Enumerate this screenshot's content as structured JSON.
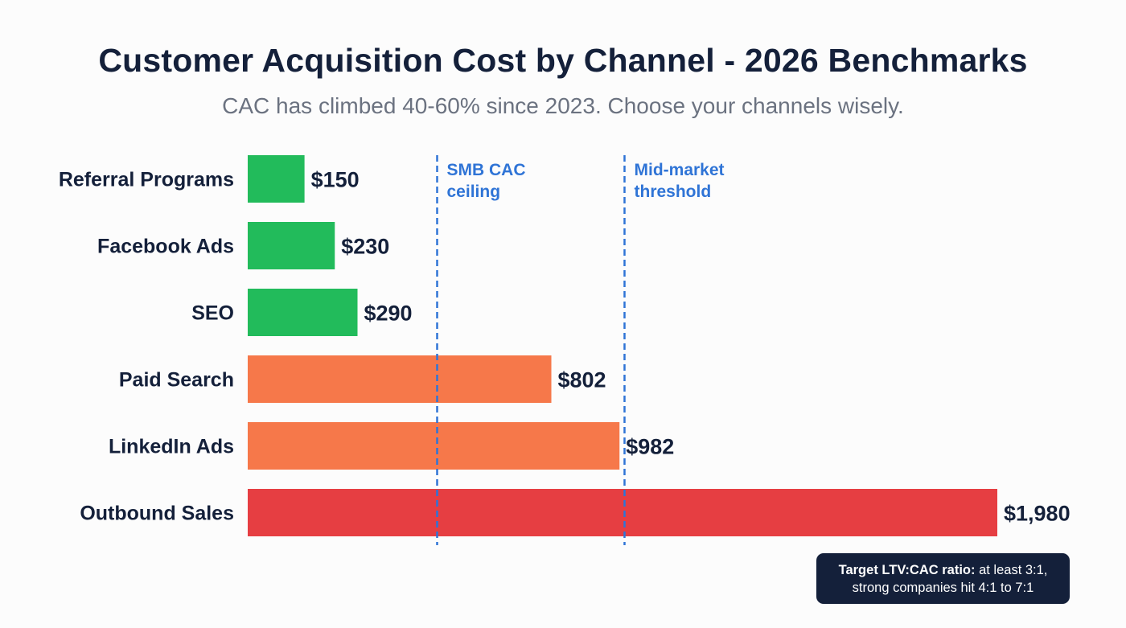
{
  "title": "Customer Acquisition Cost by Channel - 2026 Benchmarks",
  "subtitle": "CAC has climbed 40-60% since 2023. Choose your channels wisely.",
  "note": {
    "bold": "Target LTV:CAC ratio:",
    "line1_rest": " at least 3:1,",
    "line2": "strong companies hit 4:1 to 7:1"
  },
  "colors": {
    "low": "#22bb5b",
    "mid": "#f6784a",
    "high": "#e63e42",
    "reference": "#2f74d6",
    "text": "#14203a"
  },
  "chart_data": {
    "type": "bar",
    "orientation": "horizontal",
    "categories": [
      "Referral Programs",
      "Facebook Ads",
      "SEO",
      "Paid Search",
      "LinkedIn Ads",
      "Outbound Sales"
    ],
    "values": [
      150,
      230,
      290,
      802,
      982,
      1980
    ],
    "value_labels": [
      "$150",
      "$230",
      "$290",
      "$802",
      "$982",
      "$1,980"
    ],
    "tiers": [
      "low",
      "low",
      "low",
      "mid",
      "mid",
      "high"
    ],
    "xlim": [
      0,
      1980
    ],
    "grid": false,
    "reference_lines": [
      {
        "value": 500,
        "label_lines": [
          "SMB CAC",
          "ceiling"
        ]
      },
      {
        "value": 995,
        "label_lines": [
          "Mid-market",
          "threshold"
        ]
      }
    ]
  }
}
